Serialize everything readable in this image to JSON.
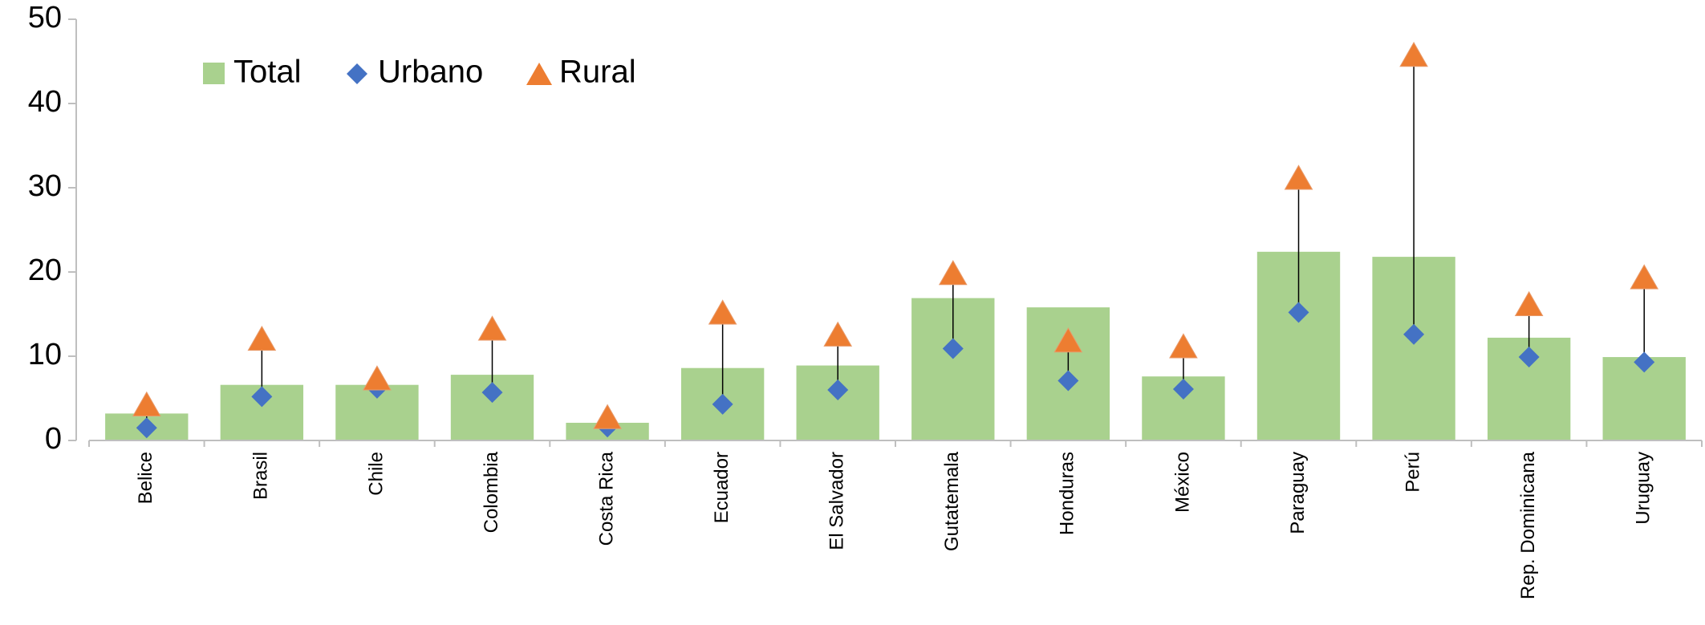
{
  "chart_data": {
    "type": "bar_range",
    "categories": [
      "Belice",
      "Brasil",
      "Chile",
      "Colombia",
      "Costa Rica",
      "Ecuador",
      "El Salvador",
      "Gutatemala",
      "Honduras",
      "México",
      "Paraguay",
      "Perú",
      "Rep. Dominicana",
      "Uruguay"
    ],
    "series": [
      {
        "name": "Total",
        "color": "#a9d18e",
        "values": [
          3.2,
          6.6,
          6.6,
          7.8,
          2.1,
          8.6,
          8.9,
          16.9,
          15.8,
          7.6,
          22.4,
          21.8,
          12.2,
          9.9
        ]
      },
      {
        "name": "Urbano",
        "color": "#4472c4",
        "values": [
          1.5,
          5.2,
          6.2,
          5.7,
          1.6,
          4.3,
          6.0,
          10.9,
          7.1,
          6.1,
          15.2,
          12.6,
          9.9,
          9.3
        ]
      },
      {
        "name": "Rural",
        "color": "#ed7d31",
        "values": [
          4.5,
          12.3,
          7.6,
          13.5,
          3.0,
          15.4,
          12.8,
          20.1,
          12.1,
          11.4,
          31.4,
          46.0,
          16.4,
          19.6
        ]
      }
    ],
    "ylim": [
      0,
      50
    ],
    "yticks": [
      0,
      10,
      20,
      30,
      40,
      50
    ],
    "grid": false,
    "legend": "top-left"
  }
}
